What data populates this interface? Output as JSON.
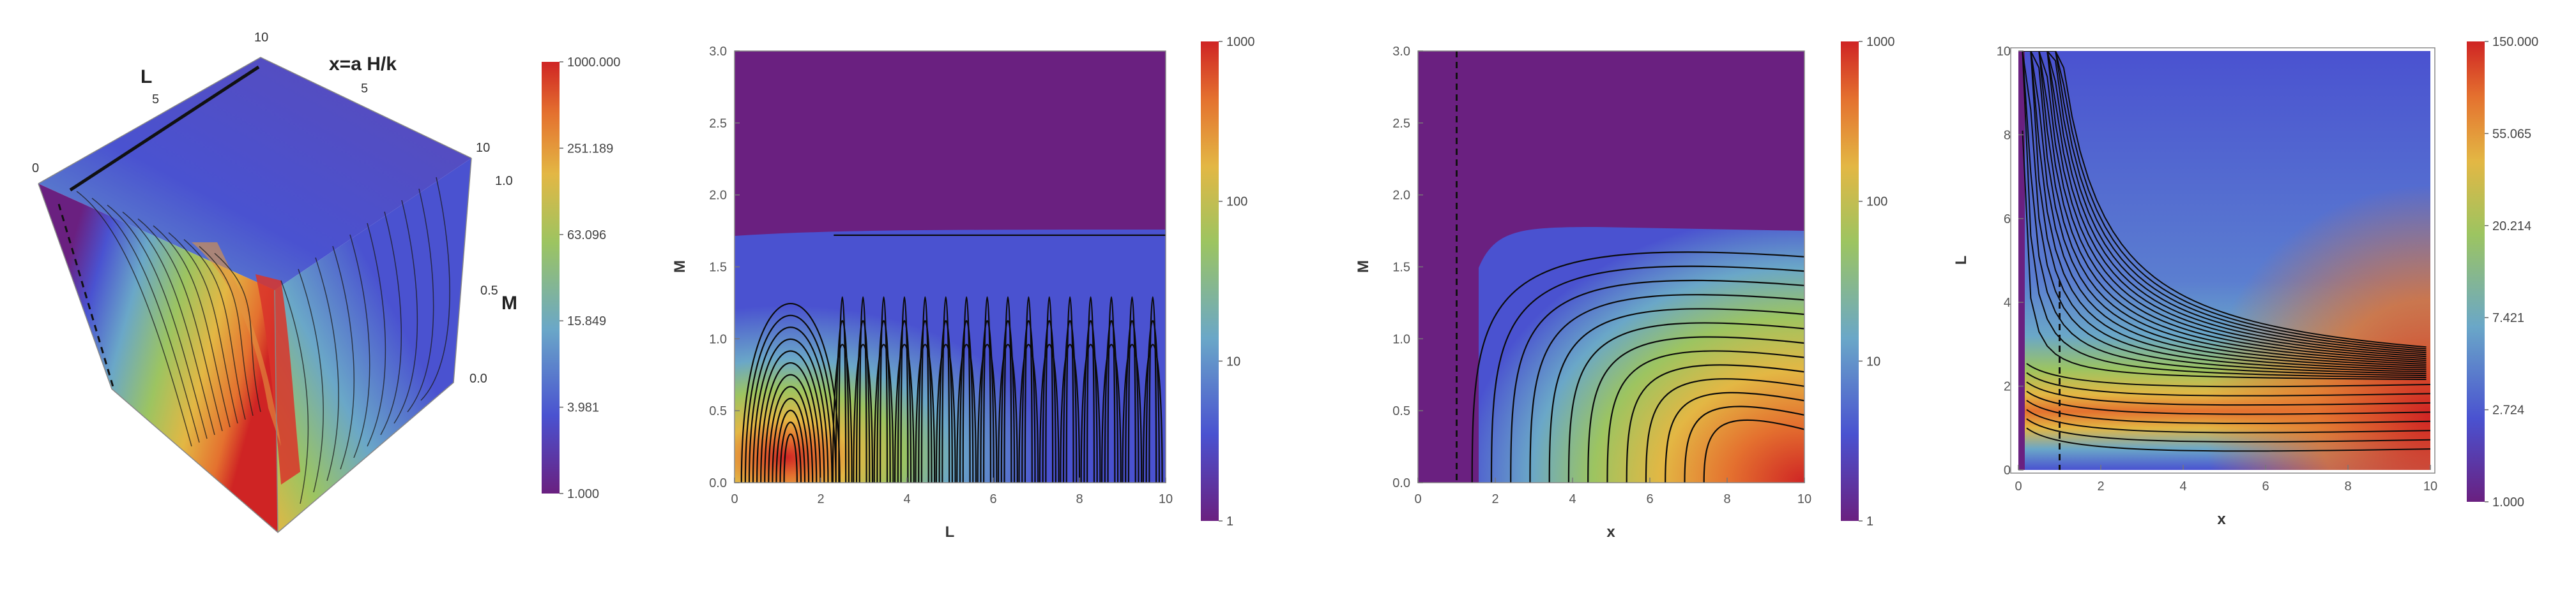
{
  "colors": {
    "purple": "#6a2080",
    "blue": "#4a52d0",
    "cyan": "#6aa7c8",
    "green": "#9cc461",
    "yellow": "#e3b744",
    "orange": "#e4712f",
    "red": "#cf2424"
  },
  "chart_data": [
    {
      "id": "cube3d",
      "type": "heatmap",
      "title": "",
      "axis_labels": {
        "L": "L",
        "x": "x=a H/k",
        "M": "M"
      },
      "L_ticks": [
        "0",
        "5",
        "10"
      ],
      "x_ticks": [
        "0",
        "5",
        "10"
      ],
      "M_ticks": [
        "0.0",
        "0.5",
        "1.0"
      ],
      "colorbar": {
        "scale": "log",
        "range": [
          1,
          1000
        ],
        "tick_labels": [
          "1.000",
          "3.981",
          "15.849",
          "63.096",
          "251.189",
          "1000.000"
        ]
      }
    },
    {
      "id": "contour_LM",
      "type": "heatmap",
      "xlabel": "L",
      "ylabel": "M",
      "xlim": [
        0,
        10
      ],
      "ylim": [
        0,
        3
      ],
      "x_ticks": [
        "0",
        "2",
        "4",
        "6",
        "8",
        "10"
      ],
      "y_ticks": [
        "0.0",
        "0.5",
        "1.0",
        "1.5",
        "2.0",
        "2.5",
        "3.0"
      ],
      "colorbar": {
        "scale": "log",
        "range": [
          1,
          1000
        ],
        "tick_labels": [
          "1",
          "10",
          "100",
          "1000"
        ]
      }
    },
    {
      "id": "contour_xM",
      "type": "heatmap",
      "xlabel": "x",
      "ylabel": "M",
      "xlim": [
        0,
        10
      ],
      "ylim": [
        0,
        3
      ],
      "x_ticks": [
        "0",
        "2",
        "4",
        "6",
        "8",
        "10"
      ],
      "y_ticks": [
        "0.0",
        "0.5",
        "1.0",
        "1.5",
        "2.0",
        "2.5",
        "3.0"
      ],
      "dashed_line_x": 1,
      "colorbar": {
        "scale": "log",
        "range": [
          1,
          1000
        ],
        "tick_labels": [
          "1",
          "10",
          "100",
          "1000"
        ]
      }
    },
    {
      "id": "contour_xL",
      "type": "heatmap",
      "xlabel": "x",
      "ylabel": "L",
      "xlim": [
        0,
        10
      ],
      "ylim": [
        0,
        10
      ],
      "x_ticks": [
        "0",
        "2",
        "4",
        "6",
        "8",
        "10"
      ],
      "y_ticks": [
        "0",
        "2",
        "4",
        "6",
        "8",
        "10"
      ],
      "dashed_line_x": 1,
      "colorbar": {
        "scale": "log",
        "range": [
          1,
          150
        ],
        "tick_labels": [
          "1.000",
          "2.724",
          "7.421",
          "20.214",
          "55.065",
          "150.000"
        ]
      }
    }
  ]
}
